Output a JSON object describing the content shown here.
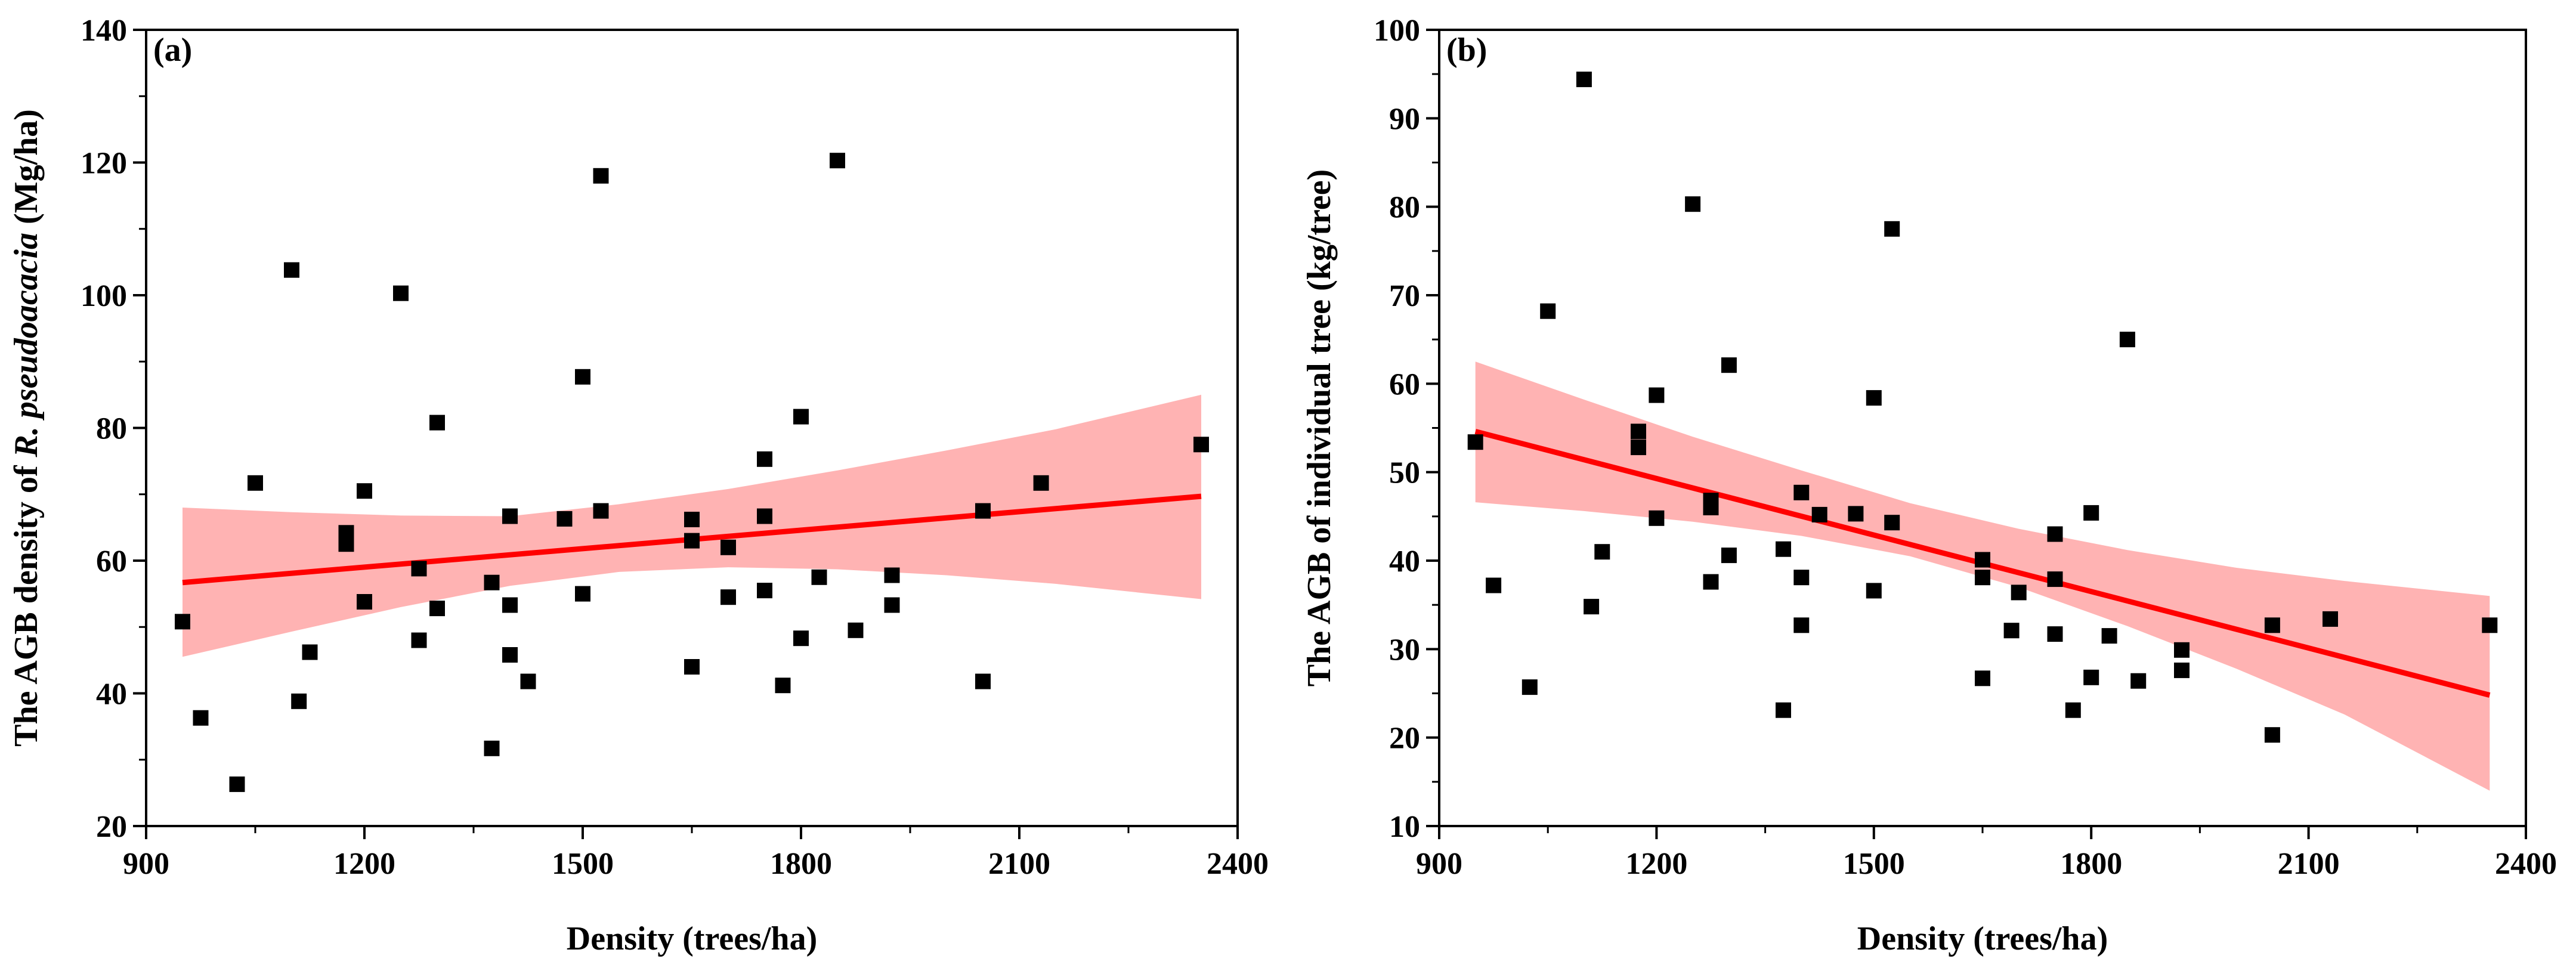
{
  "chart_data": [
    {
      "type": "scatter",
      "panel_label": "(a)",
      "xlabel": "Density (trees/ha)",
      "ylabel_parts": [
        "The AGB density of ",
        "R. pseudoacacia",
        " (Mg/ha)"
      ],
      "xlim": [
        900,
        2400
      ],
      "ylim": [
        20,
        140
      ],
      "xticks": [
        900,
        1200,
        1500,
        1800,
        2100,
        2400
      ],
      "yticks": [
        20,
        40,
        60,
        80,
        100,
        120,
        140
      ],
      "marker_color": "#000000",
      "fit_color": "#ff0000",
      "band_color": "#ffb3b3",
      "points": [
        [
          950,
          50.8
        ],
        [
          975,
          36.3
        ],
        [
          1025,
          26.3
        ],
        [
          1050,
          71.7
        ],
        [
          1100,
          103.8
        ],
        [
          1110,
          38.8
        ],
        [
          1125,
          46.2
        ],
        [
          1175,
          62.5
        ],
        [
          1175,
          64.2
        ],
        [
          1200,
          53.8
        ],
        [
          1200,
          70.5
        ],
        [
          1250,
          100.3
        ],
        [
          1275,
          48.0
        ],
        [
          1275,
          58.8
        ],
        [
          1300,
          80.8
        ],
        [
          1300,
          52.8
        ],
        [
          1375,
          31.7
        ],
        [
          1375,
          56.7
        ],
        [
          1400,
          53.3
        ],
        [
          1400,
          45.8
        ],
        [
          1400,
          66.7
        ],
        [
          1425,
          41.8
        ],
        [
          1475,
          66.3
        ],
        [
          1500,
          87.7
        ],
        [
          1500,
          55.0
        ],
        [
          1525,
          118.0
        ],
        [
          1525,
          67.5
        ],
        [
          1650,
          44.0
        ],
        [
          1650,
          63.0
        ],
        [
          1650,
          66.2
        ],
        [
          1700,
          54.5
        ],
        [
          1700,
          62.0
        ],
        [
          1750,
          75.3
        ],
        [
          1750,
          66.7
        ],
        [
          1750,
          55.5
        ],
        [
          1775,
          41.2
        ],
        [
          1800,
          81.7
        ],
        [
          1800,
          48.3
        ],
        [
          1825,
          57.5
        ],
        [
          1850,
          120.3
        ],
        [
          1875,
          49.5
        ],
        [
          1925,
          57.8
        ],
        [
          1925,
          53.3
        ],
        [
          2050,
          67.5
        ],
        [
          2050,
          41.8
        ],
        [
          2130,
          71.7
        ],
        [
          2350,
          77.5
        ]
      ],
      "fit_line": {
        "x": [
          950,
          2350
        ],
        "y": [
          56.7,
          69.7
        ]
      },
      "confidence_band": {
        "x": [
          950,
          1100,
          1250,
          1400,
          1550,
          1700,
          1850,
          2000,
          2150,
          2350
        ],
        "upper": [
          68.0,
          67.3,
          66.8,
          66.7,
          68.5,
          70.8,
          73.6,
          76.6,
          79.8,
          85.0
        ],
        "lower": [
          45.5,
          49.3,
          53.0,
          56.2,
          58.3,
          59.0,
          58.7,
          57.8,
          56.5,
          54.2
        ]
      }
    },
    {
      "type": "scatter",
      "panel_label": "(b)",
      "xlabel": "Density (trees/ha)",
      "ylabel_parts": [
        "The AGB of individual tree (kg/tree)"
      ],
      "xlim": [
        900,
        2400
      ],
      "ylim": [
        10,
        100
      ],
      "xticks": [
        900,
        1200,
        1500,
        1800,
        2100,
        2400
      ],
      "yticks": [
        10,
        20,
        30,
        40,
        50,
        60,
        70,
        80,
        90,
        100
      ],
      "marker_color": "#000000",
      "fit_color": "#ff0000",
      "band_color": "#ffb3b3",
      "points": [
        [
          950,
          53.4
        ],
        [
          975,
          37.2
        ],
        [
          1025,
          25.7
        ],
        [
          1050,
          68.2
        ],
        [
          1100,
          94.4
        ],
        [
          1110,
          34.8
        ],
        [
          1125,
          41.0
        ],
        [
          1175,
          54.6
        ],
        [
          1175,
          52.8
        ],
        [
          1200,
          58.7
        ],
        [
          1200,
          44.8
        ],
        [
          1250,
          80.3
        ],
        [
          1275,
          37.6
        ],
        [
          1275,
          46.0
        ],
        [
          1275,
          46.8
        ],
        [
          1300,
          62.1
        ],
        [
          1300,
          40.6
        ],
        [
          1375,
          23.1
        ],
        [
          1375,
          41.3
        ],
        [
          1400,
          47.7
        ],
        [
          1400,
          38.1
        ],
        [
          1400,
          32.7
        ],
        [
          1425,
          45.2
        ],
        [
          1475,
          45.3
        ],
        [
          1500,
          58.4
        ],
        [
          1500,
          36.6
        ],
        [
          1525,
          77.5
        ],
        [
          1525,
          44.3
        ],
        [
          1650,
          26.7
        ],
        [
          1650,
          38.1
        ],
        [
          1650,
          40.1
        ],
        [
          1690,
          32.1
        ],
        [
          1700,
          36.4
        ],
        [
          1750,
          43.0
        ],
        [
          1750,
          37.9
        ],
        [
          1750,
          31.7
        ],
        [
          1775,
          23.1
        ],
        [
          1800,
          45.4
        ],
        [
          1800,
          26.8
        ],
        [
          1825,
          31.5
        ],
        [
          1850,
          65.0
        ],
        [
          1865,
          26.4
        ],
        [
          1925,
          29.9
        ],
        [
          1925,
          27.6
        ],
        [
          2050,
          32.7
        ],
        [
          2050,
          20.3
        ],
        [
          2130,
          33.4
        ],
        [
          2350,
          32.7
        ]
      ],
      "fit_line": {
        "x": [
          950,
          2350
        ],
        "y": [
          54.6,
          24.8
        ]
      },
      "confidence_band": {
        "x": [
          950,
          1100,
          1250,
          1400,
          1550,
          1700,
          1850,
          2000,
          2150,
          2350
        ],
        "upper": [
          62.5,
          58.2,
          54.0,
          50.2,
          46.5,
          43.6,
          41.2,
          39.2,
          37.7,
          36.0
        ],
        "lower": [
          46.6,
          45.6,
          44.4,
          42.8,
          40.5,
          37.0,
          32.6,
          27.8,
          22.6,
          14.0
        ]
      }
    }
  ]
}
